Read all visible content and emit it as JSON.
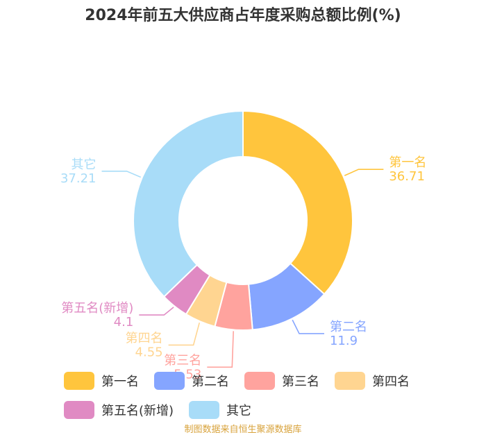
{
  "title": "2024年前五大供应商占年度采购总额比例(%)",
  "source": "制图数据来自恒生聚源数据库",
  "chart_data": {
    "type": "pie",
    "title": "2024年前五大供应商占年度采购总额比例(%)",
    "donut": true,
    "legend_position": "bottom",
    "categories": [
      "第一名",
      "第二名",
      "第三名",
      "第四名",
      "第五名(新增)",
      "其它"
    ],
    "values": [
      36.71,
      11.9,
      5.53,
      4.55,
      4.1,
      37.21
    ],
    "value_labels": [
      "36.71",
      "11.9",
      "5.53",
      "4.55",
      "4.1",
      "37.21"
    ],
    "colors": [
      "#ffc53d",
      "#85a5ff",
      "#ffa39e",
      "#ffd591",
      "#e08ac3",
      "#a8dcf8"
    ]
  }
}
